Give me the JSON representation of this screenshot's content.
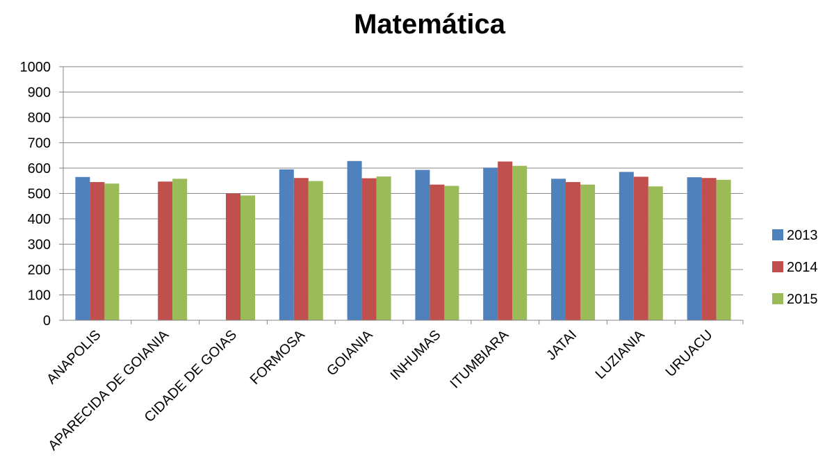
{
  "chart_data": {
    "type": "bar",
    "title": "Matemática",
    "xlabel": "",
    "ylabel": "",
    "ylim": [
      0,
      1000
    ],
    "yticks": [
      0,
      100,
      200,
      300,
      400,
      500,
      600,
      700,
      800,
      900,
      1000
    ],
    "grid": true,
    "legend_position": "right",
    "categories": [
      "ANAPOLIS",
      "APARECIDA DE GOIANIA",
      "CIDADE DE GOIAS",
      "FORMOSA",
      "GOIANIA",
      "INHUMAS",
      "ITUMBIARA",
      "JATAI",
      "LUZIANIA",
      "URUACU"
    ],
    "series": [
      {
        "name": "2013",
        "color": "#4F81BD",
        "values": [
          565,
          null,
          null,
          595,
          628,
          593,
          602,
          558,
          585,
          564
        ]
      },
      {
        "name": "2014",
        "color": "#C0504D",
        "values": [
          545,
          547,
          500,
          561,
          560,
          535,
          626,
          545,
          566,
          561
        ]
      },
      {
        "name": "2015",
        "color": "#9BBB59",
        "values": [
          539,
          558,
          492,
          549,
          567,
          530,
          609,
          535,
          528,
          554
        ]
      }
    ]
  }
}
